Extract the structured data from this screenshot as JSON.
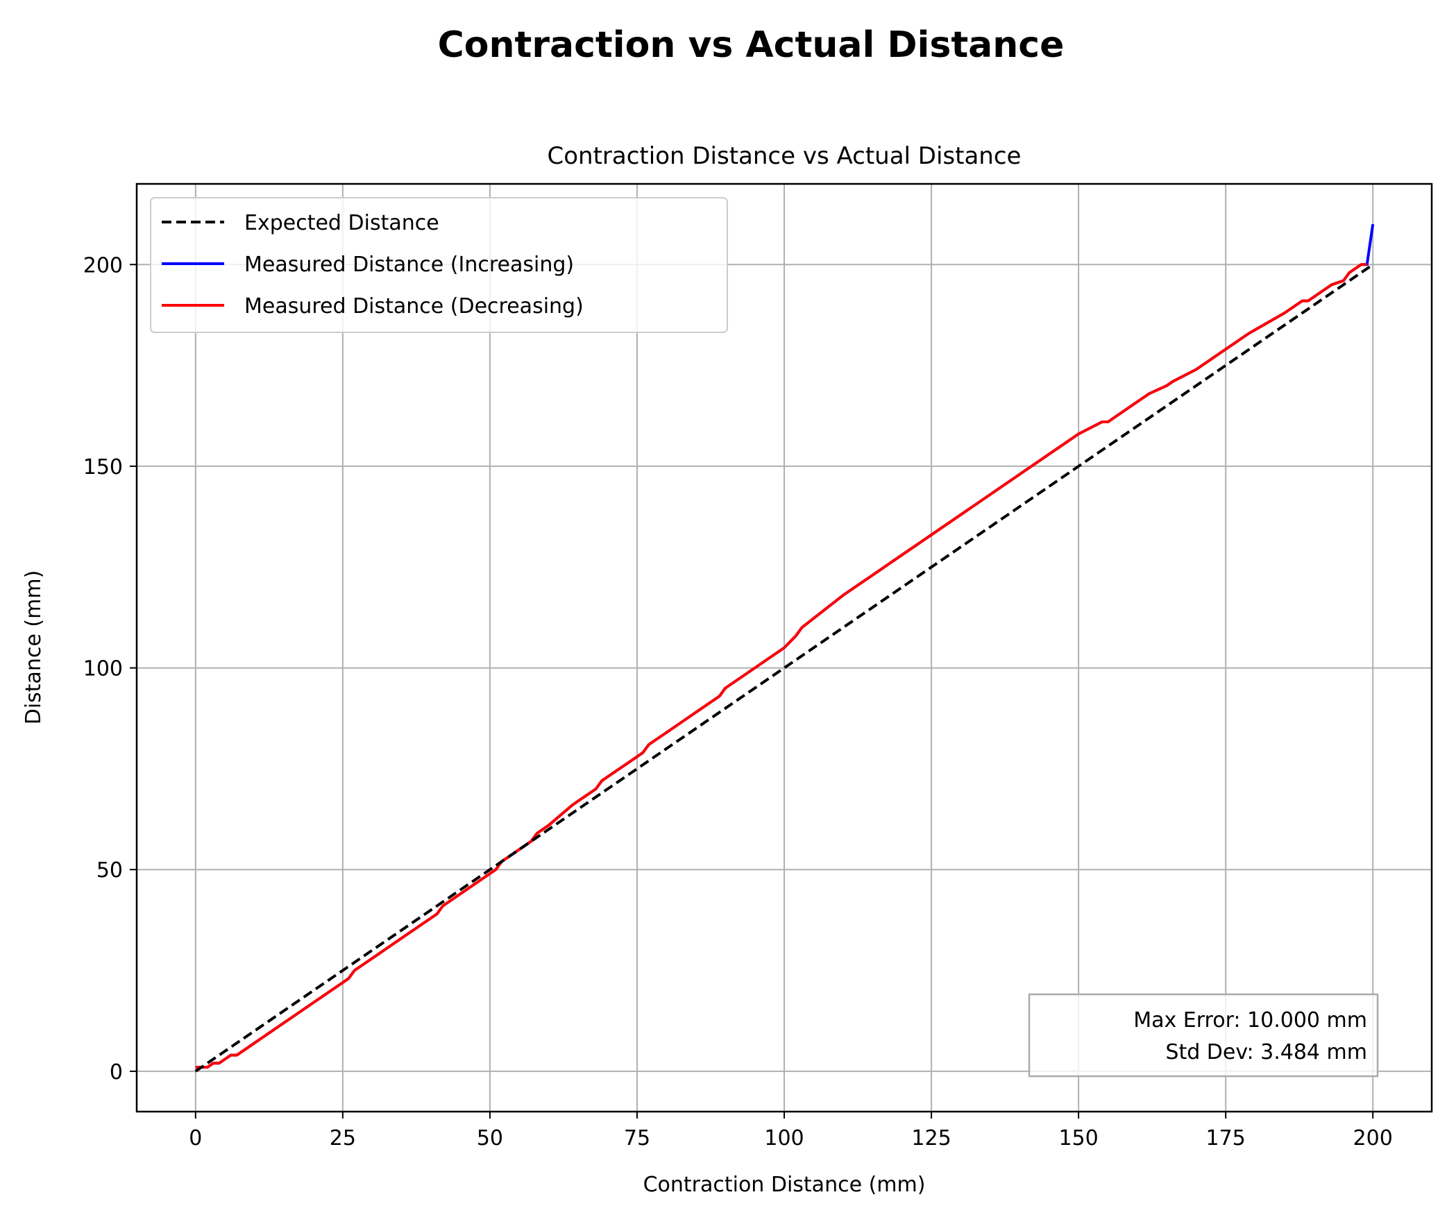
{
  "chart_data": {
    "type": "line",
    "title": "Contraction vs Actual Distance",
    "subtitle": "Contraction Distance vs Actual Distance",
    "xlabel": "Contraction Distance (mm)",
    "ylabel": "Distance (mm)",
    "xlim": [
      -10,
      210
    ],
    "ylim": [
      -10,
      220
    ],
    "xticks": [
      0,
      25,
      50,
      75,
      100,
      125,
      150,
      175,
      200
    ],
    "yticks": [
      0,
      50,
      100,
      150,
      200
    ],
    "grid": true,
    "legend_position": "upper-left",
    "series": [
      {
        "name": "Expected Distance",
        "color": "#000000",
        "style": "dashed",
        "x": [
          0,
          200
        ],
        "y": [
          0,
          200
        ]
      },
      {
        "name": "Measured Distance (Increasing)",
        "color": "#0000ff",
        "style": "solid",
        "x": [
          0,
          1,
          2,
          3,
          4,
          5,
          6,
          7,
          8,
          10,
          15,
          20,
          25,
          26,
          27,
          30,
          31,
          32,
          35,
          40,
          41,
          42,
          45,
          50,
          51,
          52,
          55,
          57,
          58,
          60,
          64,
          65,
          68,
          69,
          70,
          75,
          76,
          77,
          80,
          85,
          89,
          90,
          95,
          100,
          102,
          103,
          110,
          120,
          130,
          140,
          150,
          154,
          155,
          160,
          161,
          162,
          165,
          166,
          170,
          175,
          178,
          179,
          185,
          188,
          189,
          192,
          193,
          195,
          196,
          197,
          198,
          199,
          200
        ],
        "y": [
          1,
          1,
          1,
          2,
          2,
          3,
          4,
          4,
          5,
          7,
          12,
          17,
          22,
          23,
          25,
          28,
          29,
          30,
          33,
          38,
          39,
          41,
          44,
          49,
          50,
          52,
          55,
          57,
          59,
          61,
          66,
          67,
          70,
          72,
          73,
          78,
          79,
          81,
          84,
          89,
          93,
          95,
          100,
          105,
          108,
          110,
          118,
          128,
          138,
          148,
          158,
          161,
          161,
          166,
          167,
          168,
          170,
          171,
          174,
          179,
          182,
          183,
          188,
          191,
          191,
          194,
          195,
          196,
          198,
          199,
          200,
          200,
          210
        ]
      },
      {
        "name": "Measured Distance (Decreasing)",
        "color": "#ff0000",
        "style": "solid",
        "x": [
          0,
          1,
          2,
          3,
          4,
          5,
          6,
          7,
          8,
          10,
          15,
          20,
          25,
          26,
          27,
          30,
          31,
          32,
          35,
          40,
          41,
          42,
          45,
          50,
          51,
          52,
          55,
          57,
          58,
          60,
          64,
          65,
          68,
          69,
          70,
          75,
          76,
          77,
          80,
          85,
          89,
          90,
          95,
          100,
          102,
          103,
          110,
          120,
          130,
          140,
          150,
          154,
          155,
          160,
          161,
          162,
          165,
          166,
          170,
          175,
          178,
          179,
          185,
          188,
          189,
          192,
          193,
          195,
          196,
          197,
          198,
          199
        ],
        "y": [
          1,
          1,
          1,
          2,
          2,
          3,
          4,
          4,
          5,
          7,
          12,
          17,
          22,
          23,
          25,
          28,
          29,
          30,
          33,
          38,
          39,
          41,
          44,
          49,
          50,
          52,
          55,
          57,
          59,
          61,
          66,
          67,
          70,
          72,
          73,
          78,
          79,
          81,
          84,
          89,
          93,
          95,
          100,
          105,
          108,
          110,
          118,
          128,
          138,
          148,
          158,
          161,
          161,
          166,
          167,
          168,
          170,
          171,
          174,
          179,
          182,
          183,
          188,
          191,
          191,
          194,
          195,
          196,
          198,
          199,
          200,
          200
        ]
      }
    ],
    "annotation": {
      "lines": [
        "Max Error: 10.000 mm",
        "Std Dev: 3.484 mm"
      ],
      "position": "lower-right"
    }
  }
}
